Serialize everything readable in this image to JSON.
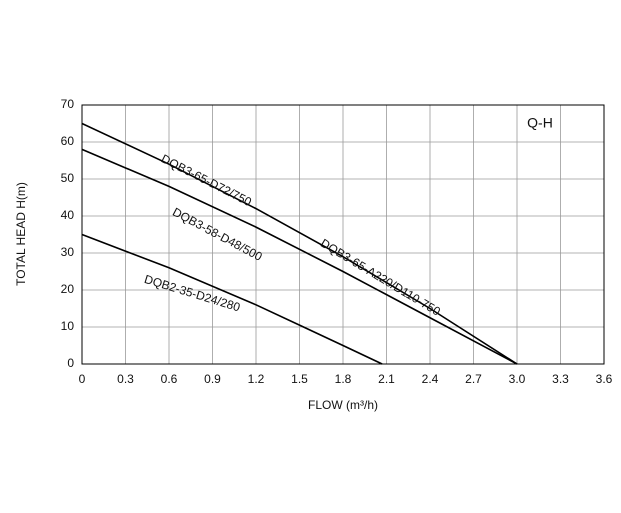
{
  "chart_data": {
    "type": "line",
    "title": "Q-H",
    "xlabel": "FLOW (m³/h)",
    "ylabel": "TOTAL HEAD H(m)",
    "series": [
      {
        "name": "DQB3-65-D72/750",
        "color": "#000000",
        "x": [
          0,
          0.6,
          1.2,
          1.8,
          2.4,
          3.0
        ],
        "values": [
          65,
          54,
          42,
          29,
          15,
          0
        ]
      },
      {
        "name": "DQB3-58-D48/500",
        "color": "#000000",
        "x": [
          0,
          0.6,
          1.2,
          1.8,
          2.4,
          3.0
        ],
        "values": [
          58,
          48,
          37,
          25,
          12.5,
          0
        ]
      },
      {
        "name": "DQB2-35-D24/280",
        "color": "#000000",
        "x": [
          0,
          0.6,
          1.2,
          1.5,
          1.8,
          2.07
        ],
        "values": [
          35,
          26,
          16,
          10.5,
          5,
          0
        ]
      }
    ],
    "annotations": [
      "DQB3-65-D72/750",
      "DQB3-58-D48/500",
      "DQB3-65-A220/D110-750",
      "DQB2-35-D24/280"
    ],
    "xlim": [
      0,
      3.6
    ],
    "ylim": [
      0,
      70
    ],
    "xticks": [
      0,
      0.3,
      0.6,
      0.9,
      1.2,
      1.5,
      1.8,
      2.1,
      2.4,
      2.7,
      {
        "value": 3,
        "label": "3.0"
      },
      3.3,
      3.6
    ],
    "yticks": [
      0,
      10,
      20,
      30,
      40,
      50,
      60,
      70
    ],
    "grid": true
  }
}
